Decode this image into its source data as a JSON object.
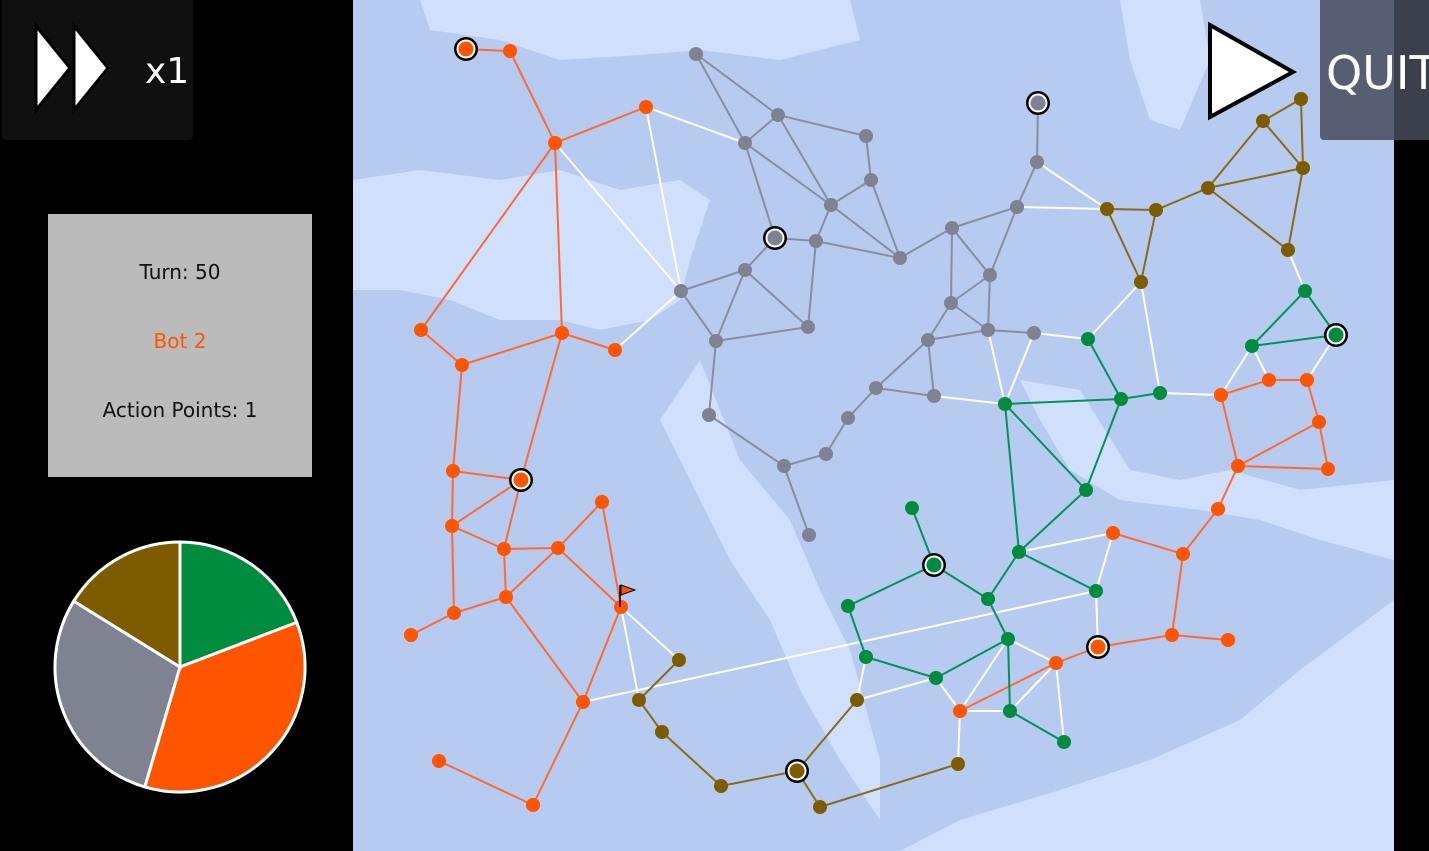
{
  "controls": {
    "speed_label": "x1",
    "speed_icon": "fast-forward-icon",
    "play_icon": "play-icon",
    "quit_label": "QUIT"
  },
  "hud": {
    "turn": "Turn: 50",
    "current_player": "Bot 2",
    "action_points": "Action Points: 1"
  },
  "colors": {
    "orange": "#ff5500",
    "gray": "#7f8391",
    "brown": "#7d5c00",
    "green": "#008c3f",
    "land": "#b7cbf0",
    "sea": "#cfdffc",
    "neutral_edge": "#ffffff"
  },
  "players": [
    {
      "id": "green",
      "territories": 19
    },
    {
      "id": "orange",
      "territories": 35
    },
    {
      "id": "gray",
      "territories": 29
    },
    {
      "id": "brown",
      "territories": 16
    }
  ]
}
